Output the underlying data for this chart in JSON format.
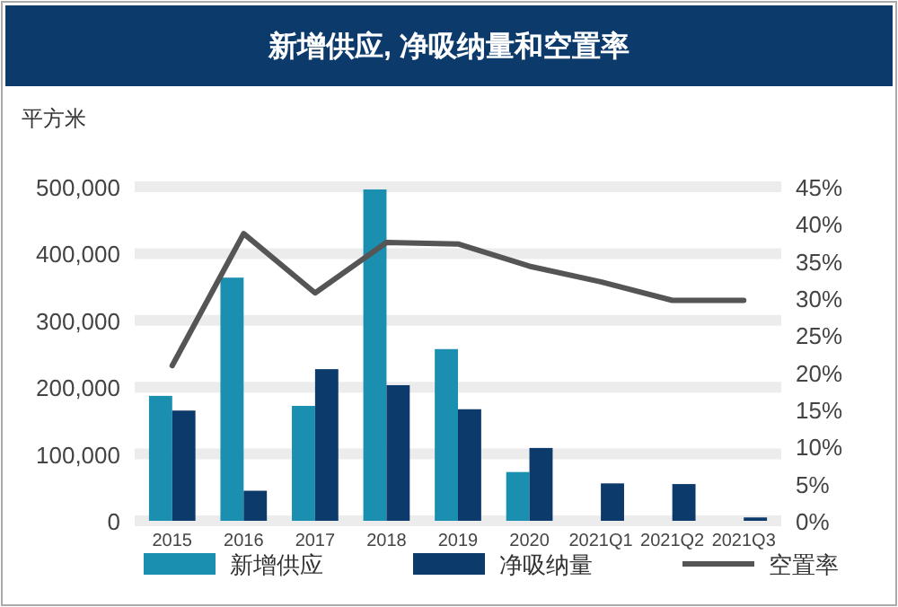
{
  "chart_data": {
    "type": "bar",
    "title": "新增供应, 净吸纳量和空置率",
    "ylabel": "平方米",
    "categories": [
      "2015",
      "2016",
      "2017",
      "2018",
      "2019",
      "2020",
      "2021Q1",
      "2021Q2",
      "2021Q3"
    ],
    "series": [
      {
        "name": "新增供应",
        "color": "#1a8fb0",
        "values": [
          187000,
          364000,
          172000,
          496000,
          257000,
          73000,
          null,
          null,
          null
        ]
      },
      {
        "name": "净吸纳量",
        "color": "#0b3a6b",
        "values": [
          165000,
          45000,
          227000,
          203000,
          167000,
          109000,
          56000,
          55000,
          5000
        ]
      },
      {
        "name": "空置率",
        "type": "line",
        "axis": "y2",
        "color": "#555555",
        "values": [
          20.9,
          38.7,
          30.7,
          37.5,
          37.3,
          34.3,
          32.2,
          29.7,
          29.7
        ]
      }
    ],
    "ylim": [
      0,
      500000
    ],
    "yticks": [
      {
        "value": 0,
        "label": "0"
      },
      {
        "value": 100000,
        "label": "100,000"
      },
      {
        "value": 200000,
        "label": "200,000"
      },
      {
        "value": 300000,
        "label": "300,000"
      },
      {
        "value": 400000,
        "label": "400,000"
      },
      {
        "value": 500000,
        "label": "500,000"
      }
    ],
    "y2lim": [
      0,
      45
    ],
    "y2ticks": [
      {
        "value": 0,
        "label": "0%"
      },
      {
        "value": 5,
        "label": "5%"
      },
      {
        "value": 10,
        "label": "10%"
      },
      {
        "value": 15,
        "label": "15%"
      },
      {
        "value": 20,
        "label": "20%"
      },
      {
        "value": 25,
        "label": "25%"
      },
      {
        "value": 30,
        "label": "30%"
      },
      {
        "value": 35,
        "label": "35%"
      },
      {
        "value": 40,
        "label": "40%"
      },
      {
        "value": 45,
        "label": "45%"
      }
    ],
    "grid": "y",
    "legend": "bottom",
    "marker": "none"
  }
}
